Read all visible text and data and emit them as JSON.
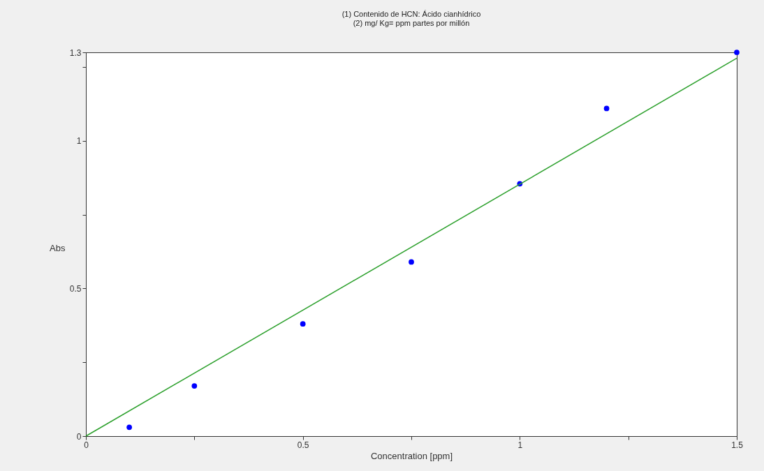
{
  "chart_data": {
    "type": "scatter",
    "xlabel": "Concentration [ppm]",
    "ylabel": "Abs",
    "annotations": [
      "(1)    Contenido de  HCN: Ácido cianhídrico",
      "(2)    mg/ Kg= ppm partes por millón"
    ],
    "x": [
      0.1,
      0.25,
      0.5,
      0.75,
      1.0,
      1.2,
      1.5
    ],
    "series": [
      {
        "color": "#0000ff",
        "marker": "circle",
        "values": [
          0.03,
          0.17,
          0.38,
          0.59,
          0.855,
          1.11,
          1.3
        ]
      },
      {
        "type": "line",
        "color": "#2ca02c",
        "x": [
          0,
          1.5
        ],
        "values": [
          0,
          1.28
        ]
      }
    ],
    "xlim": [
      0,
      1.5
    ],
    "ylim": [
      0,
      1.3
    ],
    "xticks": [
      0,
      {
        "value": 0.25,
        "label": null
      },
      0.5,
      {
        "value": 0.75,
        "label": null
      },
      1,
      {
        "value": 1.25,
        "label": null
      },
      1.5
    ],
    "yticks": [
      0,
      {
        "value": 0.25,
        "label": null
      },
      0.5,
      {
        "value": 0.75,
        "label": null
      },
      1,
      {
        "value": 1.25,
        "label": null
      },
      1.3
    ],
    "grid": false
  }
}
